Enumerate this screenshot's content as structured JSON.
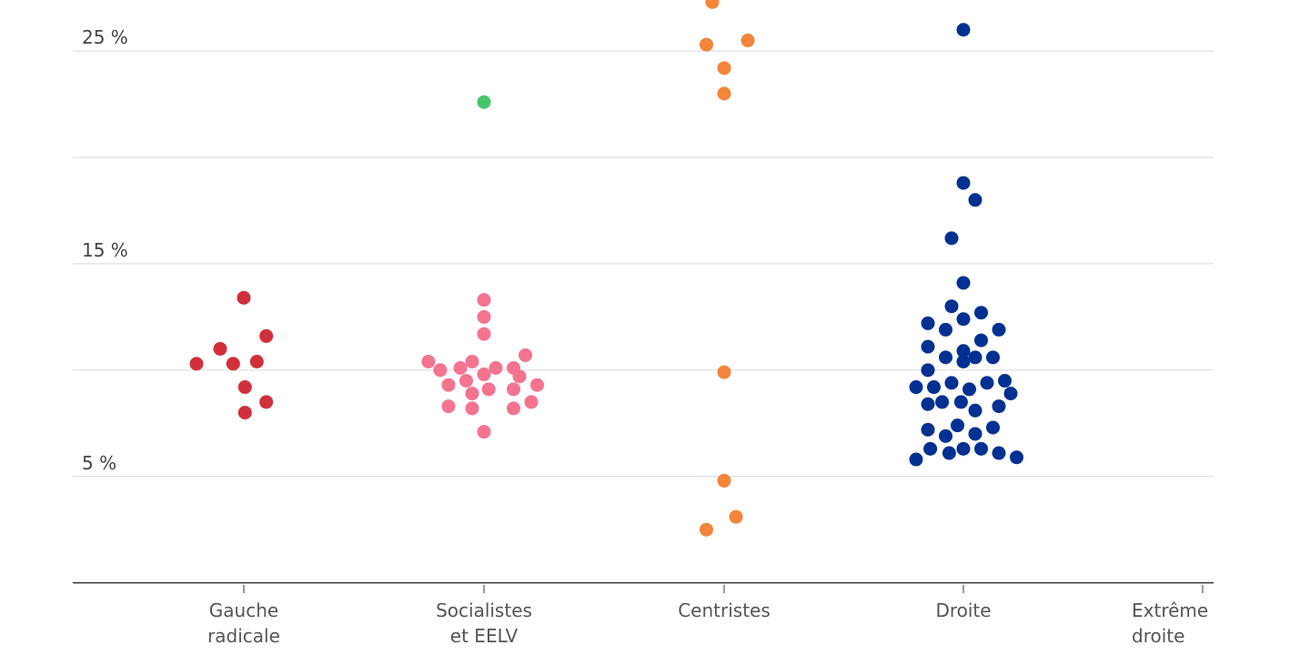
{
  "chart_data": {
    "type": "scatter",
    "title": "",
    "xlabel": "",
    "ylabel": "",
    "ylim": [
      -0.1,
      27.4
    ],
    "grid": true,
    "y_ticks": [
      {
        "value": 0,
        "label": ""
      },
      {
        "value": 5,
        "label": "5 %"
      },
      {
        "value": 10,
        "label": ""
      },
      {
        "value": 15,
        "label": "15 %"
      },
      {
        "value": 20,
        "label": ""
      },
      {
        "value": 25,
        "label": "25 %"
      }
    ],
    "categories": [
      {
        "label": "Gauche radicale",
        "lines": [
          "Gauche",
          "radicale"
        ],
        "color": "#d12f3a"
      },
      {
        "label": "Socialistes et EELV",
        "lines": [
          "Socialistes",
          "et EELV"
        ],
        "color": "#f47490"
      },
      {
        "label": "Centristes",
        "lines": [
          "Centristes"
        ],
        "color": "#f4853a"
      },
      {
        "label": "Droite",
        "lines": [
          "Droite"
        ],
        "color": "#003192"
      },
      {
        "label": "Extrême droite",
        "lines": [
          "Extrême",
          "droite"
        ],
        "color": "#333333"
      }
    ],
    "series": [
      {
        "category": "Gauche radicale",
        "color": "#d12f3a",
        "points": [
          {
            "offset": 0,
            "value": 13.4
          },
          {
            "offset": -2.0,
            "value": 11.0
          },
          {
            "offset": 1.9,
            "value": 11.6
          },
          {
            "offset": -4.0,
            "value": 10.3
          },
          {
            "offset": -0.9,
            "value": 10.3
          },
          {
            "offset": 1.1,
            "value": 10.4
          },
          {
            "offset": 0.1,
            "value": 9.2
          },
          {
            "offset": 0.1,
            "value": 8.0
          },
          {
            "offset": 1.9,
            "value": 8.5
          }
        ]
      },
      {
        "category": "Socialistes et EELV",
        "color": "#f47490",
        "points": [
          {
            "offset": 0,
            "value": 13.3
          },
          {
            "offset": 0,
            "value": 12.5
          },
          {
            "offset": 0,
            "value": 11.7
          },
          {
            "offset": -4.7,
            "value": 10.4
          },
          {
            "offset": -3.7,
            "value": 10.0
          },
          {
            "offset": -2.0,
            "value": 10.1
          },
          {
            "offset": -1.0,
            "value": 10.4
          },
          {
            "offset": 0,
            "value": 9.8
          },
          {
            "offset": 1.0,
            "value": 10.1
          },
          {
            "offset": 2.5,
            "value": 10.1
          },
          {
            "offset": 3.5,
            "value": 10.7
          },
          {
            "offset": -3.0,
            "value": 9.3
          },
          {
            "offset": -1.5,
            "value": 9.5
          },
          {
            "offset": -1.0,
            "value": 8.9
          },
          {
            "offset": 0.4,
            "value": 9.1
          },
          {
            "offset": 2.5,
            "value": 9.1
          },
          {
            "offset": 3.0,
            "value": 9.7
          },
          {
            "offset": 4.5,
            "value": 9.3
          },
          {
            "offset": -3.0,
            "value": 8.3
          },
          {
            "offset": -1.0,
            "value": 8.2
          },
          {
            "offset": 2.5,
            "value": 8.2
          },
          {
            "offset": 4.0,
            "value": 8.5
          },
          {
            "offset": 0,
            "value": 7.1
          }
        ]
      },
      {
        "category": "Centristes",
        "color": "#f4853a",
        "points": [
          {
            "offset": -1.0,
            "value": 27.3
          },
          {
            "offset": -1.5,
            "value": 25.3
          },
          {
            "offset": 2.0,
            "value": 25.5
          },
          {
            "offset": 0,
            "value": 24.2
          },
          {
            "offset": 0,
            "value": 23.0
          },
          {
            "offset": 0,
            "value": 9.9
          },
          {
            "offset": 0,
            "value": 4.8
          },
          {
            "offset": 1.0,
            "value": 3.1
          },
          {
            "offset": -1.5,
            "value": 2.5
          }
        ]
      },
      {
        "category": "Socialistes et EELV (vert)",
        "category_index": 1,
        "color": "#43c66a",
        "points": [
          {
            "offset": 0,
            "value": 22.6
          }
        ]
      },
      {
        "category": "Droite",
        "color": "#003192",
        "points": [
          {
            "offset": 0,
            "value": 26.0
          },
          {
            "offset": 0,
            "value": 18.8
          },
          {
            "offset": 1.0,
            "value": 18.0
          },
          {
            "offset": -1.0,
            "value": 16.2
          },
          {
            "offset": 0,
            "value": 14.1
          },
          {
            "offset": -1.0,
            "value": 13.0
          },
          {
            "offset": 0,
            "value": 12.4
          },
          {
            "offset": 1.5,
            "value": 12.7
          },
          {
            "offset": -3.0,
            "value": 12.2
          },
          {
            "offset": -1.5,
            "value": 11.9
          },
          {
            "offset": 1.5,
            "value": 11.4
          },
          {
            "offset": 3.0,
            "value": 11.9
          },
          {
            "offset": -3.0,
            "value": 11.1
          },
          {
            "offset": 0,
            "value": 10.9
          },
          {
            "offset": -1.5,
            "value": 10.6
          },
          {
            "offset": 1.0,
            "value": 10.6
          },
          {
            "offset": 2.5,
            "value": 10.6
          },
          {
            "offset": -3.0,
            "value": 10.0
          },
          {
            "offset": 0,
            "value": 10.4
          },
          {
            "offset": -4.0,
            "value": 9.2
          },
          {
            "offset": -2.5,
            "value": 9.2
          },
          {
            "offset": -1.0,
            "value": 9.4
          },
          {
            "offset": 0.5,
            "value": 9.1
          },
          {
            "offset": 2.0,
            "value": 9.4
          },
          {
            "offset": 3.5,
            "value": 9.5
          },
          {
            "offset": 4.0,
            "value": 8.9
          },
          {
            "offset": -3.0,
            "value": 8.4
          },
          {
            "offset": -1.8,
            "value": 8.5
          },
          {
            "offset": -0.2,
            "value": 8.5
          },
          {
            "offset": 1.0,
            "value": 8.1
          },
          {
            "offset": 3.0,
            "value": 8.3
          },
          {
            "offset": -3.0,
            "value": 7.2
          },
          {
            "offset": -1.5,
            "value": 6.9
          },
          {
            "offset": -0.5,
            "value": 7.4
          },
          {
            "offset": 1.0,
            "value": 7.0
          },
          {
            "offset": 2.5,
            "value": 7.3
          },
          {
            "offset": -4.0,
            "value": 5.8
          },
          {
            "offset": -2.8,
            "value": 6.3
          },
          {
            "offset": -1.2,
            "value": 6.1
          },
          {
            "offset": 0,
            "value": 6.3
          },
          {
            "offset": 1.5,
            "value": 6.3
          },
          {
            "offset": 3.0,
            "value": 6.1
          },
          {
            "offset": 4.5,
            "value": 5.9
          }
        ]
      }
    ]
  }
}
